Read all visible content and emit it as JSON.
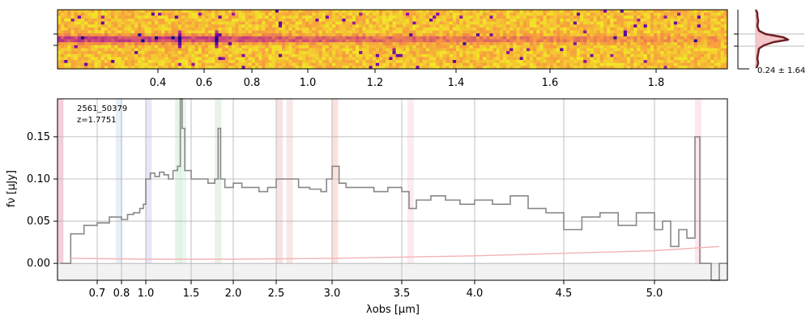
{
  "chart_data": [
    {
      "type": "heatmap",
      "panel": "2d-spectrum",
      "colormap": "plasma",
      "xticks": [
        "0.4",
        "0.6",
        "0.8",
        "1.0",
        "1.2",
        "1.4",
        "1.6",
        "1.8"
      ]
    },
    {
      "type": "line",
      "panel": "profile",
      "annotation": "0.24 ± 1.64",
      "colors": {
        "line": "#6e1f24",
        "fill": "#f3b8bd"
      }
    },
    {
      "type": "line",
      "panel": "1d-spectrum",
      "object_id": "2561_50379",
      "redshift_label": "z=1.7751",
      "xlabel": "λobs [μm]",
      "ylabel": "fν [μJy]",
      "xlim": [
        0.55,
        5.45
      ],
      "ylim": [
        -0.02,
        0.195
      ],
      "xticks": [
        "0.7",
        "0.8",
        "1.0",
        "1.5",
        "2.0",
        "2.5",
        "3.0",
        "3.5",
        "4.0",
        "4.5",
        "5.0"
      ],
      "yticks": [
        "0.00",
        "0.05",
        "0.10",
        "0.15"
      ],
      "grid": true,
      "bands": [
        {
          "x": 0.56,
          "color": "#e8a0b8"
        },
        {
          "x": 0.79,
          "color": "#cfe2f3"
        },
        {
          "x": 1.03,
          "color": "#d0d0f0"
        },
        {
          "x": 1.36,
          "color": "#cde8d0"
        },
        {
          "x": 1.41,
          "color": "#d6efe0"
        },
        {
          "x": 1.82,
          "color": "#cfe8d0"
        },
        {
          "x": 2.53,
          "color": "#f0c8c8"
        },
        {
          "x": 2.62,
          "color": "#f0d0d0"
        },
        {
          "x": 3.02,
          "color": "#f7c3bd"
        },
        {
          "x": 3.56,
          "color": "#f7d8e4"
        },
        {
          "x": 5.27,
          "color": "#f7d0dc"
        }
      ],
      "series": [
        {
          "color": "#888888",
          "points": [
            [
              0.56,
              0.0
            ],
            [
              0.6,
              0.035
            ],
            [
              0.65,
              0.045
            ],
            [
              0.7,
              0.048
            ],
            [
              0.75,
              0.055
            ],
            [
              0.8,
              0.052
            ],
            [
              0.85,
              0.058
            ],
            [
              0.9,
              0.06
            ],
            [
              0.95,
              0.065
            ],
            [
              0.98,
              0.07
            ],
            [
              1.0,
              0.1
            ],
            [
              1.05,
              0.107
            ],
            [
              1.1,
              0.103
            ],
            [
              1.15,
              0.108
            ],
            [
              1.2,
              0.105
            ],
            [
              1.25,
              0.1
            ],
            [
              1.3,
              0.11
            ],
            [
              1.35,
              0.115
            ],
            [
              1.38,
              0.195
            ],
            [
              1.4,
              0.16
            ],
            [
              1.43,
              0.11
            ],
            [
              1.5,
              0.1
            ],
            [
              1.6,
              0.1
            ],
            [
              1.7,
              0.095
            ],
            [
              1.78,
              0.1
            ],
            [
              1.82,
              0.16
            ],
            [
              1.85,
              0.1
            ],
            [
              1.9,
              0.09
            ],
            [
              2.0,
              0.095
            ],
            [
              2.1,
              0.09
            ],
            [
              2.2,
              0.09
            ],
            [
              2.3,
              0.085
            ],
            [
              2.4,
              0.09
            ],
            [
              2.5,
              0.1
            ],
            [
              2.6,
              0.1
            ],
            [
              2.7,
              0.09
            ],
            [
              2.8,
              0.088
            ],
            [
              2.9,
              0.085
            ],
            [
              2.95,
              0.1
            ],
            [
              3.0,
              0.115
            ],
            [
              3.05,
              0.095
            ],
            [
              3.1,
              0.09
            ],
            [
              3.2,
              0.09
            ],
            [
              3.3,
              0.085
            ],
            [
              3.4,
              0.09
            ],
            [
              3.5,
              0.085
            ],
            [
              3.55,
              0.065
            ],
            [
              3.6,
              0.075
            ],
            [
              3.7,
              0.08
            ],
            [
              3.8,
              0.075
            ],
            [
              3.9,
              0.07
            ],
            [
              4.0,
              0.075
            ],
            [
              4.1,
              0.07
            ],
            [
              4.2,
              0.08
            ],
            [
              4.3,
              0.065
            ],
            [
              4.4,
              0.06
            ],
            [
              4.5,
              0.04
            ],
            [
              4.6,
              0.055
            ],
            [
              4.7,
              0.06
            ],
            [
              4.8,
              0.045
            ],
            [
              4.9,
              0.06
            ],
            [
              5.0,
              0.04
            ],
            [
              5.05,
              0.05
            ],
            [
              5.1,
              0.02
            ],
            [
              5.15,
              0.04
            ],
            [
              5.2,
              0.03
            ],
            [
              5.25,
              0.15
            ],
            [
              5.28,
              0.0
            ],
            [
              5.35,
              -0.02
            ],
            [
              5.4,
              0.0
            ],
            [
              5.45,
              0.0
            ]
          ]
        },
        {
          "color": "#f4b3b6",
          "points": [
            [
              0.6,
              0.006
            ],
            [
              1.0,
              0.005
            ],
            [
              2.0,
              0.005
            ],
            [
              3.0,
              0.006
            ],
            [
              4.0,
              0.009
            ],
            [
              4.5,
              0.012
            ],
            [
              5.0,
              0.015
            ],
            [
              5.4,
              0.02
            ]
          ]
        }
      ]
    }
  ]
}
